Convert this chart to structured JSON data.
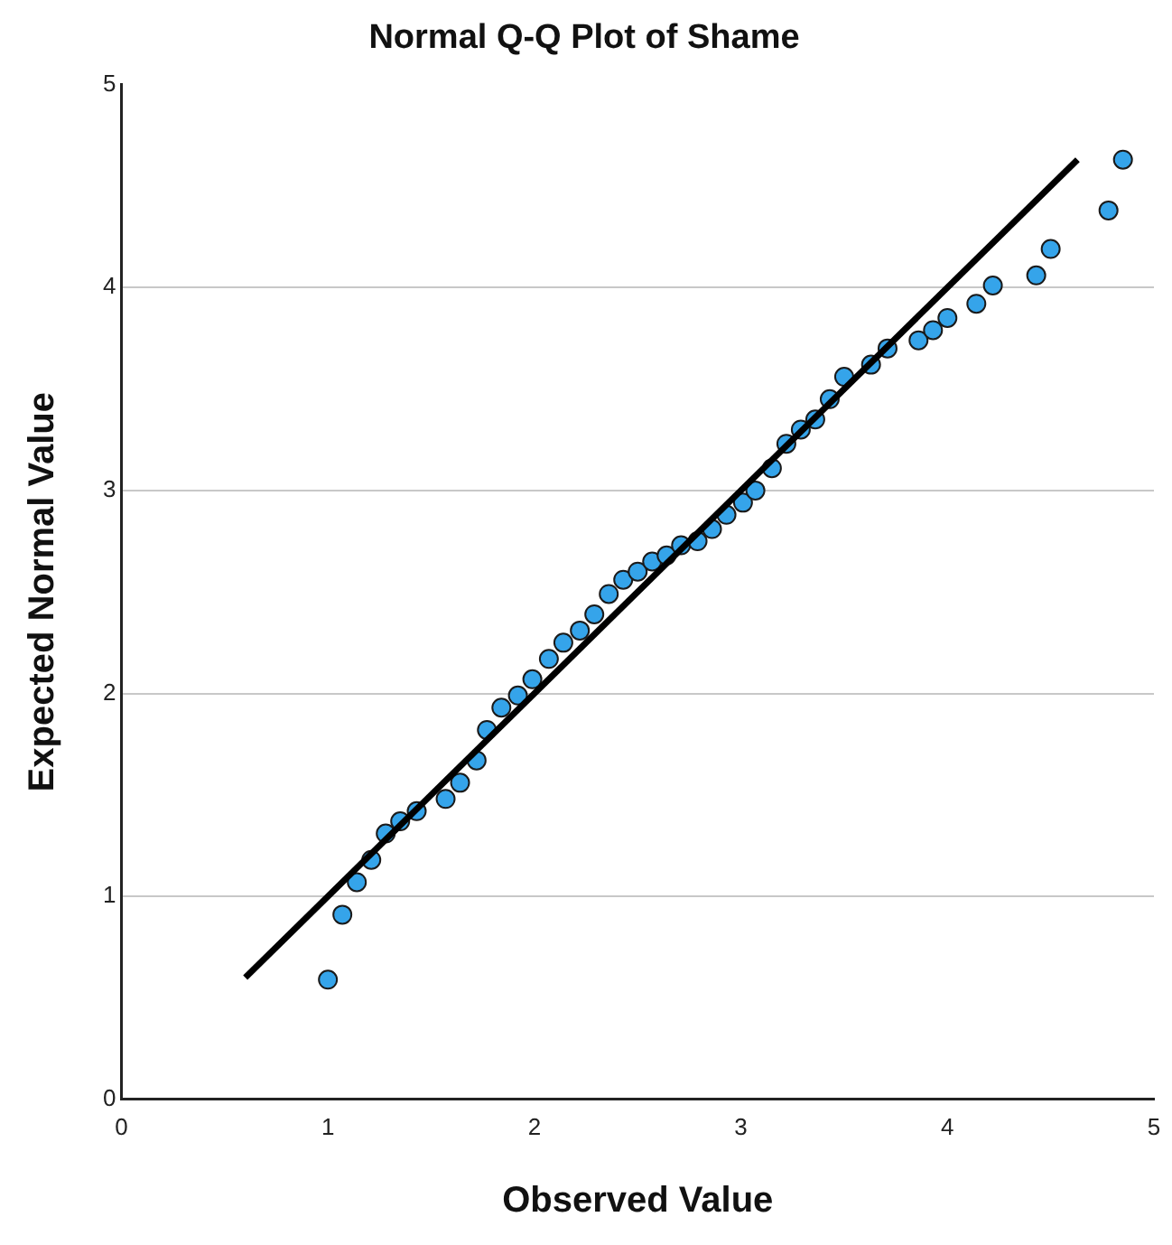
{
  "chart_data": {
    "type": "scatter",
    "title": "Normal Q-Q Plot of Shame",
    "xlabel": "Observed Value",
    "ylabel": "Expected Normal Value",
    "xlim": [
      0,
      5
    ],
    "xticks": [
      0,
      1,
      2,
      3,
      4,
      5
    ],
    "ylim": [
      0,
      5
    ],
    "yticks": [
      0,
      1,
      2,
      3,
      4,
      5
    ],
    "grid": "y",
    "legend": false,
    "marker": "circle",
    "series": [
      {
        "color": "#35a4ea",
        "x": [
          1.0,
          1.07,
          1.14,
          1.21,
          1.28,
          1.35,
          1.43,
          1.57,
          1.64,
          1.72,
          1.77,
          1.84,
          1.92,
          1.99,
          2.07,
          2.14,
          2.22,
          2.29,
          2.36,
          2.43,
          2.5,
          2.57,
          2.64,
          2.71,
          2.79,
          2.86,
          2.93,
          3.01,
          3.07,
          3.15,
          3.22,
          3.29,
          3.36,
          3.43,
          3.5,
          3.63,
          3.71,
          3.86,
          3.93,
          4.0,
          4.14,
          4.22,
          4.43,
          4.5,
          4.78,
          4.85
        ],
        "values": [
          0.59,
          0.91,
          1.07,
          1.18,
          1.31,
          1.37,
          1.42,
          1.48,
          1.56,
          1.67,
          1.82,
          1.93,
          1.99,
          2.07,
          2.17,
          2.25,
          2.31,
          2.39,
          2.49,
          2.56,
          2.6,
          2.65,
          2.68,
          2.73,
          2.75,
          2.81,
          2.88,
          2.94,
          3.0,
          3.11,
          3.23,
          3.3,
          3.35,
          3.45,
          3.56,
          3.62,
          3.7,
          3.74,
          3.79,
          3.85,
          3.92,
          4.01,
          4.06,
          4.19,
          4.38,
          4.63
        ]
      },
      {
        "type": "line",
        "color": "#000000",
        "marker": "none",
        "x": [
          0.6,
          4.63
        ],
        "values": [
          0.6,
          4.63
        ]
      }
    ]
  }
}
